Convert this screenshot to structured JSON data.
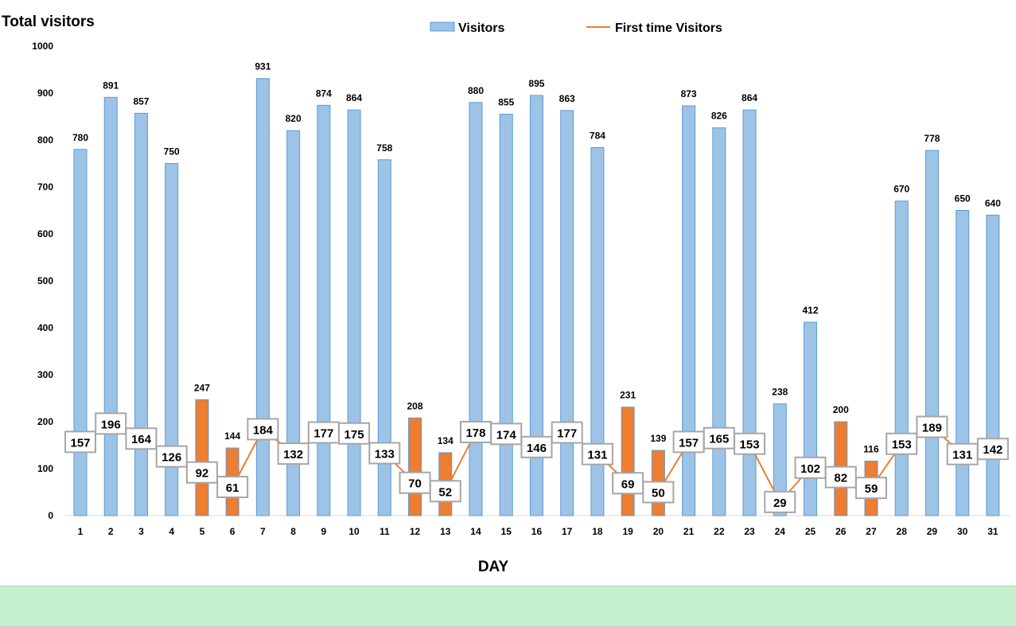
{
  "chart_data": {
    "type": "bar",
    "title": "Total visitors",
    "xlabel": "DAY",
    "ylabel": "",
    "ylim": [
      0,
      1000
    ],
    "yticks": [
      0,
      100,
      200,
      300,
      400,
      500,
      600,
      700,
      800,
      900,
      1000
    ],
    "legend_position": "top",
    "categories": [
      "1",
      "2",
      "3",
      "4",
      "5",
      "6",
      "7",
      "8",
      "9",
      "10",
      "11",
      "12",
      "13",
      "14",
      "15",
      "16",
      "17",
      "18",
      "19",
      "20",
      "21",
      "22",
      "23",
      "24",
      "25",
      "26",
      "27",
      "28",
      "29",
      "30",
      "31"
    ],
    "highlighted_days": [
      "5",
      "6",
      "12",
      "13",
      "19",
      "20",
      "26",
      "27"
    ],
    "series": [
      {
        "name": "Visitors",
        "type": "bar",
        "values": [
          780,
          891,
          857,
          750,
          247,
          144,
          931,
          820,
          874,
          864,
          758,
          208,
          134,
          880,
          855,
          895,
          863,
          784,
          231,
          139,
          873,
          826,
          864,
          238,
          412,
          200,
          116,
          670,
          778,
          650,
          640
        ]
      },
      {
        "name": "First time Visitors",
        "type": "line",
        "values": [
          157,
          196,
          164,
          126,
          92,
          61,
          184,
          132,
          177,
          175,
          133,
          70,
          52,
          178,
          174,
          146,
          177,
          131,
          69,
          50,
          157,
          165,
          153,
          29,
          102,
          82,
          59,
          153,
          189,
          131,
          142
        ]
      }
    ],
    "colors": {
      "bar": "#9dc3e6",
      "bar_edge": "#5b9bd5",
      "highlight": "#ed7d31",
      "line": "#ed7d31",
      "label_border": "#a6a6a6"
    }
  }
}
